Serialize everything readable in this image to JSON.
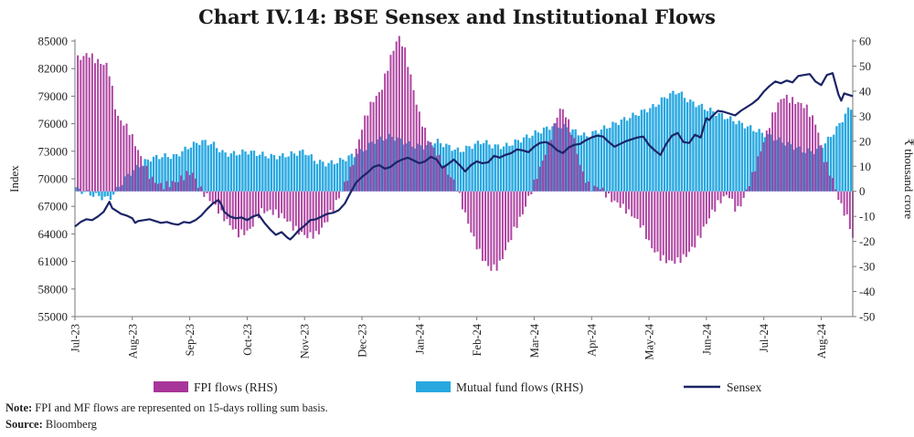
{
  "chart_data": {
    "type": "bar-line-combo",
    "title": "Chart IV.14: BSE Sensex and Institutional Flows",
    "ylabel_left": "Index",
    "ylabel_right": "₹ thousand crore",
    "ylim_left": [
      55000,
      85000
    ],
    "ylim_right": [
      -50,
      60
    ],
    "yticks_left": [
      "85000",
      "82000",
      "79000",
      "76000",
      "73000",
      "70000",
      "67000",
      "64000",
      "61000",
      "58000",
      "55000"
    ],
    "yticks_right": [
      "60",
      "50",
      "40",
      "30",
      "20",
      "10",
      "0",
      "-10",
      "-20",
      "-30",
      "-40",
      "-50"
    ],
    "x_tick_labels": [
      "Jul-23",
      "Aug-23",
      "Sep-23",
      "Oct-23",
      "Nov-23",
      "Dec-23",
      "Jan-24",
      "Feb-24",
      "Mar-24",
      "Apr-24",
      "May-24",
      "Jun-24",
      "Jul-24",
      "Aug-24"
    ],
    "x_tick_positions_month": [
      0,
      1,
      2,
      3,
      4,
      5,
      6,
      7,
      8,
      9,
      10,
      11,
      12,
      13
    ],
    "x_range_month": [
      0,
      13.55
    ],
    "legend": [
      "FPI flows (RHS)",
      "Mutual fund flows (RHS)",
      "Sensex"
    ],
    "colors": {
      "fpi": "#a8359a",
      "mf": "#29a8e0",
      "sensex": "#1b2466"
    },
    "fpi_anchors": [
      [
        0.05,
        53
      ],
      [
        0.2,
        55
      ],
      [
        0.35,
        52
      ],
      [
        0.55,
        50
      ],
      [
        0.7,
        30
      ],
      [
        0.9,
        25
      ],
      [
        1.0,
        20
      ],
      [
        1.15,
        12
      ],
      [
        1.3,
        5
      ],
      [
        1.5,
        2
      ],
      [
        1.75,
        4
      ],
      [
        2.0,
        8
      ],
      [
        2.15,
        1
      ],
      [
        2.35,
        -4
      ],
      [
        2.55,
        -10
      ],
      [
        2.8,
        -17
      ],
      [
        3.0,
        -16
      ],
      [
        3.2,
        -8
      ],
      [
        3.4,
        -8
      ],
      [
        3.6,
        -10
      ],
      [
        3.8,
        -15
      ],
      [
        4.0,
        -18
      ],
      [
        4.2,
        -17
      ],
      [
        4.35,
        -12
      ],
      [
        4.6,
        -1
      ],
      [
        4.8,
        10
      ],
      [
        5.0,
        28
      ],
      [
        5.15,
        36
      ],
      [
        5.3,
        40
      ],
      [
        5.45,
        52
      ],
      [
        5.6,
        62
      ],
      [
        5.7,
        58
      ],
      [
        5.8,
        48
      ],
      [
        5.95,
        32
      ],
      [
        6.1,
        22
      ],
      [
        6.3,
        14
      ],
      [
        6.45,
        8
      ],
      [
        6.6,
        3
      ],
      [
        6.75,
        -8
      ],
      [
        6.9,
        -18
      ],
      [
        7.05,
        -26
      ],
      [
        7.2,
        -31
      ],
      [
        7.35,
        -30
      ],
      [
        7.5,
        -22
      ],
      [
        7.65,
        -14
      ],
      [
        7.75,
        -10
      ],
      [
        7.85,
        -4
      ],
      [
        8.0,
        5
      ],
      [
        8.15,
        14
      ],
      [
        8.3,
        24
      ],
      [
        8.4,
        33
      ],
      [
        8.5,
        32
      ],
      [
        8.65,
        22
      ],
      [
        8.8,
        8
      ],
      [
        8.95,
        1
      ],
      [
        9.1,
        2
      ],
      [
        9.3,
        -3
      ],
      [
        9.5,
        -6
      ],
      [
        9.7,
        -10
      ],
      [
        9.85,
        -14
      ],
      [
        10.0,
        -22
      ],
      [
        10.15,
        -26
      ],
      [
        10.3,
        -28
      ],
      [
        10.45,
        -28
      ],
      [
        10.6,
        -26
      ],
      [
        10.75,
        -22
      ],
      [
        10.9,
        -16
      ],
      [
        11.05,
        -9
      ],
      [
        11.2,
        -4
      ],
      [
        11.35,
        -1
      ],
      [
        11.5,
        -8
      ],
      [
        11.6,
        -4
      ],
      [
        11.8,
        8
      ],
      [
        12.0,
        22
      ],
      [
        12.15,
        32
      ],
      [
        12.3,
        38
      ],
      [
        12.5,
        36
      ],
      [
        12.7,
        34
      ],
      [
        12.9,
        26
      ],
      [
        13.0,
        14
      ],
      [
        13.15,
        6
      ],
      [
        13.3,
        -5
      ],
      [
        13.45,
        -12
      ],
      [
        13.55,
        -22
      ]
    ],
    "mf_anchors": [
      [
        0.0,
        1
      ],
      [
        0.4,
        -2
      ],
      [
        0.6,
        -3
      ],
      [
        0.9,
        6
      ],
      [
        1.1,
        10
      ],
      [
        1.3,
        13
      ],
      [
        1.5,
        14
      ],
      [
        1.75,
        14
      ],
      [
        2.0,
        18
      ],
      [
        2.2,
        20
      ],
      [
        2.4,
        19
      ],
      [
        2.6,
        15
      ],
      [
        2.8,
        15
      ],
      [
        3.0,
        16
      ],
      [
        3.2,
        15
      ],
      [
        3.4,
        14
      ],
      [
        3.6,
        14
      ],
      [
        3.8,
        15
      ],
      [
        4.0,
        16
      ],
      [
        4.2,
        12
      ],
      [
        4.4,
        11
      ],
      [
        4.6,
        12
      ],
      [
        4.8,
        14
      ],
      [
        5.0,
        16
      ],
      [
        5.2,
        20
      ],
      [
        5.5,
        22
      ],
      [
        5.7,
        20
      ],
      [
        5.9,
        18
      ],
      [
        6.1,
        18
      ],
      [
        6.3,
        20
      ],
      [
        6.5,
        18
      ],
      [
        6.7,
        16
      ],
      [
        6.9,
        18
      ],
      [
        7.1,
        20
      ],
      [
        7.3,
        18
      ],
      [
        7.5,
        18
      ],
      [
        7.7,
        20
      ],
      [
        7.9,
        22
      ],
      [
        8.1,
        24
      ],
      [
        8.3,
        26
      ],
      [
        8.5,
        26
      ],
      [
        8.7,
        24
      ],
      [
        8.9,
        22
      ],
      [
        9.1,
        24
      ],
      [
        9.3,
        26
      ],
      [
        9.5,
        28
      ],
      [
        9.7,
        30
      ],
      [
        9.9,
        32
      ],
      [
        10.1,
        34
      ],
      [
        10.3,
        38
      ],
      [
        10.5,
        40
      ],
      [
        10.7,
        36
      ],
      [
        10.9,
        34
      ],
      [
        11.1,
        32
      ],
      [
        11.3,
        30
      ],
      [
        11.5,
        28
      ],
      [
        11.7,
        26
      ],
      [
        11.9,
        24
      ],
      [
        12.1,
        22
      ],
      [
        12.3,
        20
      ],
      [
        12.5,
        18
      ],
      [
        12.7,
        16
      ],
      [
        12.9,
        16
      ],
      [
        13.1,
        20
      ],
      [
        13.3,
        26
      ],
      [
        13.45,
        32
      ],
      [
        13.55,
        34
      ]
    ],
    "sensex_points": [
      [
        0,
        64800
      ],
      [
        0.1,
        65300
      ],
      [
        0.2,
        65600
      ],
      [
        0.3,
        65500
      ],
      [
        0.4,
        65900
      ],
      [
        0.5,
        66400
      ],
      [
        0.6,
        67500
      ],
      [
        0.65,
        66800
      ],
      [
        0.7,
        66600
      ],
      [
        0.8,
        66200
      ],
      [
        0.9,
        66000
      ],
      [
        1.0,
        65700
      ],
      [
        1.05,
        65200
      ],
      [
        1.1,
        65400
      ],
      [
        1.2,
        65500
      ],
      [
        1.3,
        65600
      ],
      [
        1.4,
        65400
      ],
      [
        1.5,
        65200
      ],
      [
        1.6,
        65300
      ],
      [
        1.7,
        65100
      ],
      [
        1.8,
        65000
      ],
      [
        1.9,
        65300
      ],
      [
        2.0,
        65200
      ],
      [
        2.1,
        65500
      ],
      [
        2.2,
        66000
      ],
      [
        2.3,
        66700
      ],
      [
        2.4,
        67300
      ],
      [
        2.5,
        67700
      ],
      [
        2.55,
        67200
      ],
      [
        2.6,
        66400
      ],
      [
        2.7,
        65900
      ],
      [
        2.8,
        65700
      ],
      [
        2.9,
        65800
      ],
      [
        3.0,
        65500
      ],
      [
        3.1,
        65900
      ],
      [
        3.2,
        66100
      ],
      [
        3.3,
        65200
      ],
      [
        3.4,
        64500
      ],
      [
        3.5,
        63900
      ],
      [
        3.6,
        64200
      ],
      [
        3.7,
        63600
      ],
      [
        3.75,
        63400
      ],
      [
        3.8,
        63700
      ],
      [
        3.9,
        64400
      ],
      [
        4.0,
        64900
      ],
      [
        4.1,
        65500
      ],
      [
        4.2,
        65600
      ],
      [
        4.3,
        65900
      ],
      [
        4.4,
        66200
      ],
      [
        4.5,
        66300
      ],
      [
        4.6,
        66600
      ],
      [
        4.7,
        67300
      ],
      [
        4.8,
        68500
      ],
      [
        4.9,
        69600
      ],
      [
        5.0,
        70200
      ],
      [
        5.1,
        70700
      ],
      [
        5.2,
        71300
      ],
      [
        5.3,
        71500
      ],
      [
        5.4,
        71100
      ],
      [
        5.5,
        71300
      ],
      [
        5.6,
        71800
      ],
      [
        5.7,
        72100
      ],
      [
        5.8,
        72300
      ],
      [
        5.9,
        72000
      ],
      [
        6.0,
        71700
      ],
      [
        6.1,
        71900
      ],
      [
        6.2,
        72400
      ],
      [
        6.3,
        72100
      ],
      [
        6.4,
        71200
      ],
      [
        6.5,
        71600
      ],
      [
        6.6,
        72100
      ],
      [
        6.7,
        71500
      ],
      [
        6.8,
        70800
      ],
      [
        6.9,
        71500
      ],
      [
        7.0,
        71900
      ],
      [
        7.1,
        71700
      ],
      [
        7.2,
        71800
      ],
      [
        7.3,
        72500
      ],
      [
        7.4,
        72300
      ],
      [
        7.5,
        72600
      ],
      [
        7.6,
        72800
      ],
      [
        7.7,
        73200
      ],
      [
        7.8,
        73100
      ],
      [
        7.9,
        72900
      ],
      [
        8.0,
        73500
      ],
      [
        8.1,
        73900
      ],
      [
        8.2,
        74000
      ],
      [
        8.3,
        73700
      ],
      [
        8.4,
        73100
      ],
      [
        8.5,
        72800
      ],
      [
        8.6,
        73400
      ],
      [
        8.7,
        73700
      ],
      [
        8.8,
        73800
      ],
      [
        8.9,
        74200
      ],
      [
        9.0,
        74500
      ],
      [
        9.1,
        74700
      ],
      [
        9.2,
        74600
      ],
      [
        9.3,
        74000
      ],
      [
        9.4,
        73500
      ],
      [
        9.5,
        73800
      ],
      [
        9.6,
        74100
      ],
      [
        9.7,
        74300
      ],
      [
        9.8,
        74500
      ],
      [
        9.9,
        74600
      ],
      [
        10.0,
        73700
      ],
      [
        10.1,
        73100
      ],
      [
        10.2,
        72600
      ],
      [
        10.3,
        73800
      ],
      [
        10.4,
        74700
      ],
      [
        10.5,
        75000
      ],
      [
        10.6,
        74000
      ],
      [
        10.7,
        73900
      ],
      [
        10.8,
        74800
      ],
      [
        10.9,
        74500
      ],
      [
        11.0,
        76600
      ],
      [
        11.05,
        76400
      ],
      [
        11.1,
        76800
      ],
      [
        11.2,
        77400
      ],
      [
        11.3,
        77300
      ],
      [
        11.4,
        77100
      ],
      [
        11.5,
        76900
      ],
      [
        11.6,
        77400
      ],
      [
        11.7,
        77800
      ],
      [
        11.8,
        78200
      ],
      [
        11.9,
        78700
      ],
      [
        12.0,
        79500
      ],
      [
        12.1,
        80100
      ],
      [
        12.2,
        80600
      ],
      [
        12.3,
        80400
      ],
      [
        12.4,
        80700
      ],
      [
        12.5,
        80500
      ],
      [
        12.6,
        81200
      ],
      [
        12.7,
        81300
      ],
      [
        12.8,
        81400
      ],
      [
        12.9,
        80600
      ],
      [
        13.0,
        80200
      ],
      [
        13.1,
        81300
      ],
      [
        13.2,
        81500
      ],
      [
        13.3,
        79200
      ],
      [
        13.35,
        78500
      ],
      [
        13.4,
        79300
      ],
      [
        13.5,
        79100
      ],
      [
        13.55,
        79000
      ]
    ]
  },
  "note": {
    "label": "Note:",
    "text": " FPI and MF flows are represented on 15-days rolling sum basis."
  },
  "source": {
    "label": "Source:",
    "text": " Bloomberg"
  }
}
